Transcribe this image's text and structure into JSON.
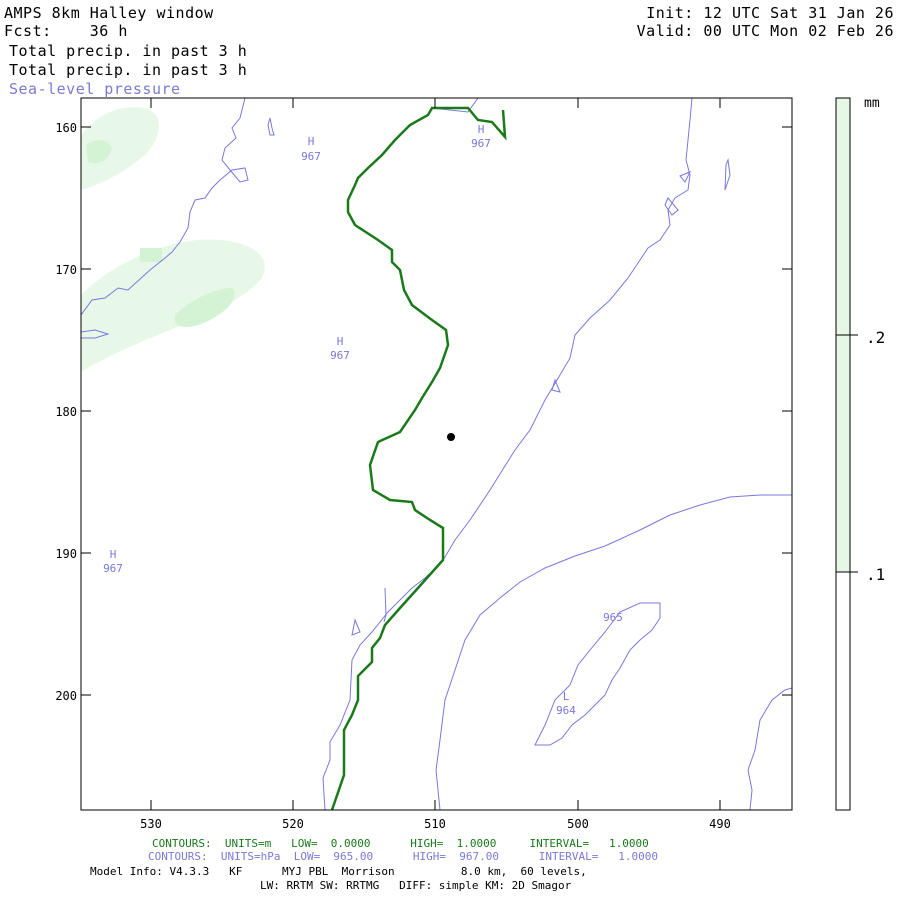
{
  "header": {
    "title": "AMPS 8km Halley window",
    "fcst_label": "Fcst:",
    "fcst_value": "36 h",
    "field1": "Total precip. in past 3 h",
    "field2": "Total precip. in past 3 h",
    "field3": "Sea-level pressure",
    "init": "Init: 12 UTC Sat 31 Jan 26",
    "valid": "Valid: 00 UTC Mon 02 Feb 26"
  },
  "axes": {
    "y_ticks": [
      "160",
      "170",
      "180",
      "190",
      "200"
    ],
    "x_ticks": [
      "530",
      "520",
      "510",
      "500",
      "490"
    ]
  },
  "colorbar": {
    "unit": "mm",
    "labels": [
      ".2",
      ".1"
    ],
    "fill_color": "#e6f7e6"
  },
  "map_labels": {
    "highs": [
      {
        "letter": "H",
        "value": "967"
      },
      {
        "letter": "H",
        "value": "967"
      },
      {
        "letter": "H",
        "value": "967"
      },
      {
        "letter": "H",
        "value": "967"
      }
    ],
    "low": {
      "letter": "L",
      "value": "964"
    },
    "isobar_965": "965"
  },
  "colors": {
    "isobar": "#7878e0",
    "green_contour": "#1a7a1a",
    "precip_light": "#e8f8e8",
    "precip_mid": "#d4f2d4"
  },
  "footer": {
    "green_line": "CONTOURS:  UNITS=m   LOW=  0.0000      HIGH=  1.0000     INTERVAL=   1.0000",
    "blue_line": "CONTOURS:  UNITS=hPa  LOW=  965.00      HIGH=  967.00      INTERVAL=   1.0000",
    "model_line": "Model Info: V4.3.3   KF      MYJ PBL  Morrison          8.0 km,  60 levels,",
    "physics_line": "LW: RRTM SW: RRTMG   DIFF: simple KM: 2D Smagor"
  }
}
